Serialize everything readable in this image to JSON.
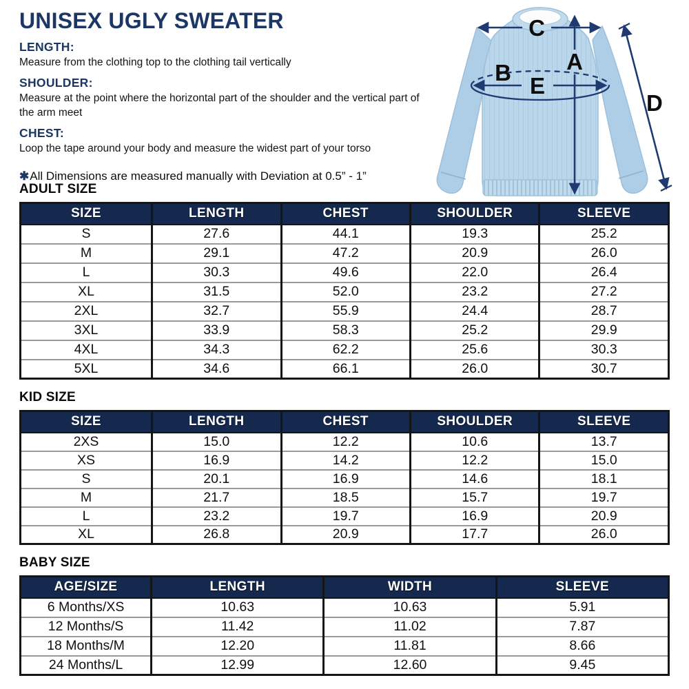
{
  "title": "UNISEX UGLY SWEATER",
  "instructions": [
    {
      "heading": "LENGTH:",
      "text": "Measure from the clothing top to the clothing tail vertically"
    },
    {
      "heading": "SHOULDER:",
      "text": "Measure at the point where the horizontal part of the shoulder and the vertical part of the arm meet"
    },
    {
      "heading": "CHEST:",
      "text": "Loop the tape around your body and measure the widest part of your torso"
    }
  ],
  "note": {
    "symbol": "✱",
    "text": "All Dimensions are measured manually with Deviation at 0.5” - 1”"
  },
  "diagram": {
    "labels": {
      "a": "A",
      "b": "B",
      "c": "C",
      "d": "D",
      "e": "E"
    },
    "colors": {
      "sweater": "#b9d6ea",
      "sweater_shade": "#aecde6",
      "trim": "#c2dbec",
      "arrow": "#1e3a70"
    }
  },
  "colors": {
    "navy_text": "#1c3764",
    "table_header_bg": "#14294d",
    "table_header_text": "#ffffff"
  },
  "sections": [
    {
      "heading": "ADULT SIZE",
      "table": {
        "columns": [
          "SIZE",
          "LENGTH",
          "CHEST",
          "SHOULDER",
          "SLEEVE"
        ],
        "rows": [
          [
            "S",
            "27.6",
            "44.1",
            "19.3",
            "25.2"
          ],
          [
            "M",
            "29.1",
            "47.2",
            "20.9",
            "26.0"
          ],
          [
            "L",
            "30.3",
            "49.6",
            "22.0",
            "26.4"
          ],
          [
            "XL",
            "31.5",
            "52.0",
            "23.2",
            "27.2"
          ],
          [
            "2XL",
            "32.7",
            "55.9",
            "24.4",
            "28.7"
          ],
          [
            "3XL",
            "33.9",
            "58.3",
            "25.2",
            "29.9"
          ],
          [
            "4XL",
            "34.3",
            "62.2",
            "25.6",
            "30.3"
          ],
          [
            "5XL",
            "34.6",
            "66.1",
            "26.0",
            "30.7"
          ]
        ]
      }
    },
    {
      "heading": "KID SIZE",
      "table": {
        "columns": [
          "SIZE",
          "LENGTH",
          "CHEST",
          "SHOULDER",
          "SLEEVE"
        ],
        "rows": [
          [
            "2XS",
            "15.0",
            "12.2",
            "10.6",
            "13.7"
          ],
          [
            "XS",
            "16.9",
            "14.2",
            "12.2",
            "15.0"
          ],
          [
            "S",
            "20.1",
            "16.9",
            "14.6",
            "18.1"
          ],
          [
            "M",
            "21.7",
            "18.5",
            "15.7",
            "19.7"
          ],
          [
            "L",
            "23.2",
            "19.7",
            "16.9",
            "20.9"
          ],
          [
            "XL",
            "26.8",
            "20.9",
            "17.7",
            "26.0"
          ]
        ]
      }
    },
    {
      "heading": "BABY SIZE",
      "table": {
        "columns": [
          "AGE/SIZE",
          "LENGTH",
          "WIDTH",
          "SLEEVE"
        ],
        "rows": [
          [
            "6 Months/XS",
            "10.63",
            "10.63",
            "5.91"
          ],
          [
            "12 Months/S",
            "11.42",
            "11.02",
            "7.87"
          ],
          [
            "18 Months/M",
            "12.20",
            "11.81",
            "8.66"
          ],
          [
            "24 Months/L",
            "12.99",
            "12.60",
            "9.45"
          ]
        ]
      }
    }
  ]
}
